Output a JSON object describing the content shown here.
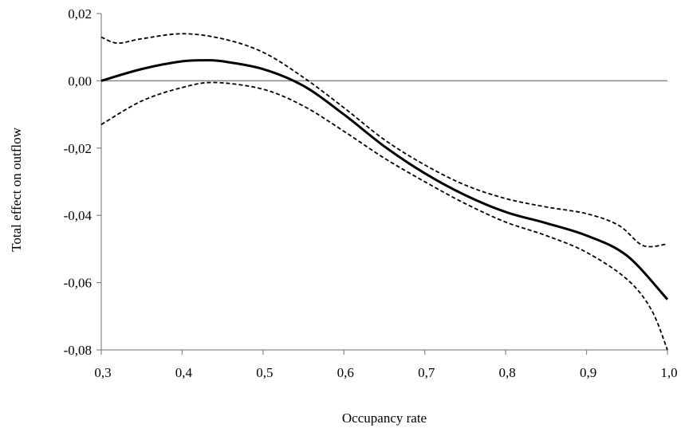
{
  "chart_data": {
    "type": "line",
    "title": "",
    "xlabel": "Occupancy rate",
    "ylabel": "Total effect on outflow",
    "xlim": [
      0.3,
      1.0
    ],
    "ylim": [
      -0.08,
      0.02
    ],
    "grid": false,
    "reference_line": 0.0,
    "x_ticks": [
      "0,3",
      "0,4",
      "0,5",
      "0,6",
      "0,7",
      "0,8",
      "0,9",
      "1,0"
    ],
    "y_ticks": [
      "0,02",
      "0,00",
      "-0,02",
      "-0,04",
      "-0,06",
      "-0,08"
    ],
    "series": [
      {
        "style": "solid",
        "color": "#000000",
        "x": [
          0.3,
          0.35,
          0.4,
          0.43,
          0.45,
          0.5,
          0.55,
          0.6,
          0.65,
          0.7,
          0.75,
          0.8,
          0.85,
          0.9,
          0.95,
          1.0
        ],
        "y": [
          0.0,
          0.0035,
          0.0058,
          0.0061,
          0.0058,
          0.0035,
          -0.0015,
          -0.01,
          -0.0195,
          -0.0275,
          -0.034,
          -0.039,
          -0.0423,
          -0.046,
          -0.052,
          -0.065
        ]
      },
      {
        "style": "dashed",
        "color": "#000000",
        "x": [
          0.3,
          0.32,
          0.35,
          0.4,
          0.45,
          0.5,
          0.55,
          0.6,
          0.65,
          0.7,
          0.75,
          0.8,
          0.85,
          0.9,
          0.94,
          0.97,
          1.0
        ],
        "y": [
          0.013,
          0.0112,
          0.0125,
          0.014,
          0.0125,
          0.0085,
          0.001,
          -0.008,
          -0.0175,
          -0.025,
          -0.031,
          -0.035,
          -0.0375,
          -0.0395,
          -0.043,
          -0.049,
          -0.0485
        ]
      },
      {
        "style": "dashed",
        "color": "#000000",
        "x": [
          0.3,
          0.35,
          0.4,
          0.44,
          0.5,
          0.55,
          0.6,
          0.65,
          0.7,
          0.75,
          0.8,
          0.85,
          0.9,
          0.95,
          0.98,
          1.0
        ],
        "y": [
          -0.013,
          -0.006,
          -0.002,
          -0.0005,
          -0.0025,
          -0.0075,
          -0.015,
          -0.023,
          -0.03,
          -0.0365,
          -0.042,
          -0.046,
          -0.051,
          -0.059,
          -0.068,
          -0.08
        ]
      }
    ]
  }
}
